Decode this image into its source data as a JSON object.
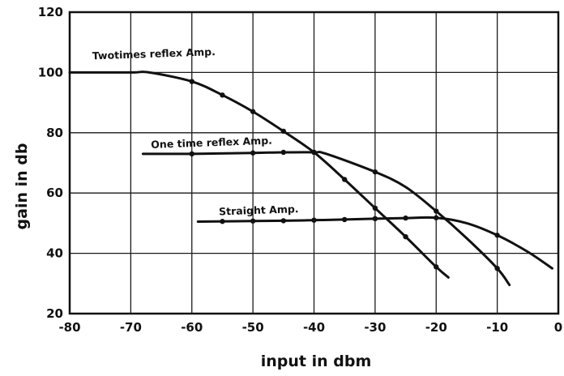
{
  "chart_data": {
    "type": "line",
    "title": "",
    "xlabel": "input in dbm",
    "ylabel": "gain in db",
    "xlim": [
      -80,
      0
    ],
    "ylim": [
      20,
      120
    ],
    "xticks": [
      -80,
      -70,
      -60,
      -50,
      -40,
      -30,
      -20,
      -10,
      0
    ],
    "yticks": [
      20,
      40,
      60,
      80,
      100,
      120
    ],
    "xtick_labels": [
      "-80",
      "-70",
      "-60",
      "-50",
      "-40",
      "-30",
      "-20",
      "-10",
      "0"
    ],
    "ytick_labels": [
      "20",
      "40",
      "60",
      "80",
      "100",
      "120"
    ],
    "grid": true,
    "series": [
      {
        "name": "Twotimes reflex Amp.",
        "x": [
          -80,
          -70,
          -67,
          -60,
          -55,
          -50,
          -45,
          -40,
          -35,
          -30,
          -25,
          -20,
          -18
        ],
        "y": [
          100,
          100,
          100,
          97,
          92.5,
          87,
          80.5,
          73.5,
          64.5,
          55,
          45.5,
          35.5,
          32
        ],
        "markers_at": [
          -60,
          -55,
          -50,
          -45,
          -40,
          -35,
          -30,
          -25,
          -20
        ]
      },
      {
        "name": "One time reflex Amp.",
        "x": [
          -68,
          -60,
          -50,
          -45,
          -40,
          -38,
          -30,
          -25,
          -20,
          -15,
          -10,
          -8
        ],
        "y": [
          73,
          73,
          73.3,
          73.5,
          73.5,
          73,
          67,
          62,
          54,
          45,
          35,
          29.5
        ],
        "markers_at": [
          -60,
          -50,
          -45,
          -40,
          -30,
          -20,
          -10
        ]
      },
      {
        "name": "Straight Amp.",
        "x": [
          -59,
          -50,
          -45,
          -40,
          -35,
          -30,
          -25,
          -20,
          -15,
          -10,
          -5,
          -1
        ],
        "y": [
          50.5,
          50.7,
          50.8,
          51,
          51.2,
          51.5,
          51.7,
          51.8,
          50,
          46,
          40.5,
          35
        ],
        "markers_at": [
          -55,
          -50,
          -45,
          -40,
          -35,
          -30,
          -25,
          -20,
          -10
        ]
      }
    ],
    "annotations": [
      {
        "text": "Twotimes reflex Amp.",
        "series": 0
      },
      {
        "text": "One time reflex Amp.",
        "series": 1
      },
      {
        "text": "Straight Amp.",
        "series": 2
      }
    ]
  }
}
